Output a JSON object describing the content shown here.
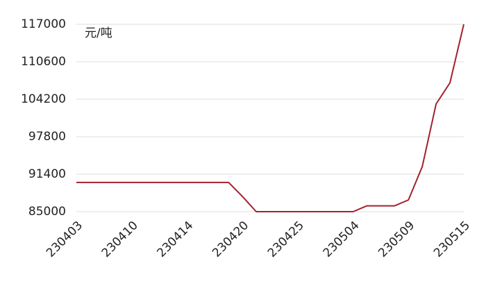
{
  "chart_data": {
    "type": "line",
    "y_unit": "元/吨",
    "categories": [
      "230403",
      null,
      null,
      null,
      "230410",
      null,
      null,
      null,
      "230414",
      null,
      null,
      null,
      "230420",
      null,
      null,
      null,
      "230425",
      null,
      null,
      null,
      "230504",
      null,
      null,
      null,
      "230509",
      null,
      null,
      null,
      "230515"
    ],
    "series": [
      {
        "color": "#a3202c",
        "values": [
          90000,
          90000,
          90000,
          90000,
          90000,
          90000,
          90000,
          90000,
          90000,
          90000,
          90000,
          90000,
          87600,
          85000,
          85000,
          85000,
          85000,
          85000,
          85000,
          85000,
          85000,
          86000,
          86000,
          86000,
          87000,
          92700,
          103400,
          107000,
          117000
        ]
      }
    ],
    "ylim": [
      85000,
      117000
    ],
    "yticks": [
      85000,
      91400,
      97800,
      104200,
      110600,
      117000
    ],
    "grid": true
  }
}
